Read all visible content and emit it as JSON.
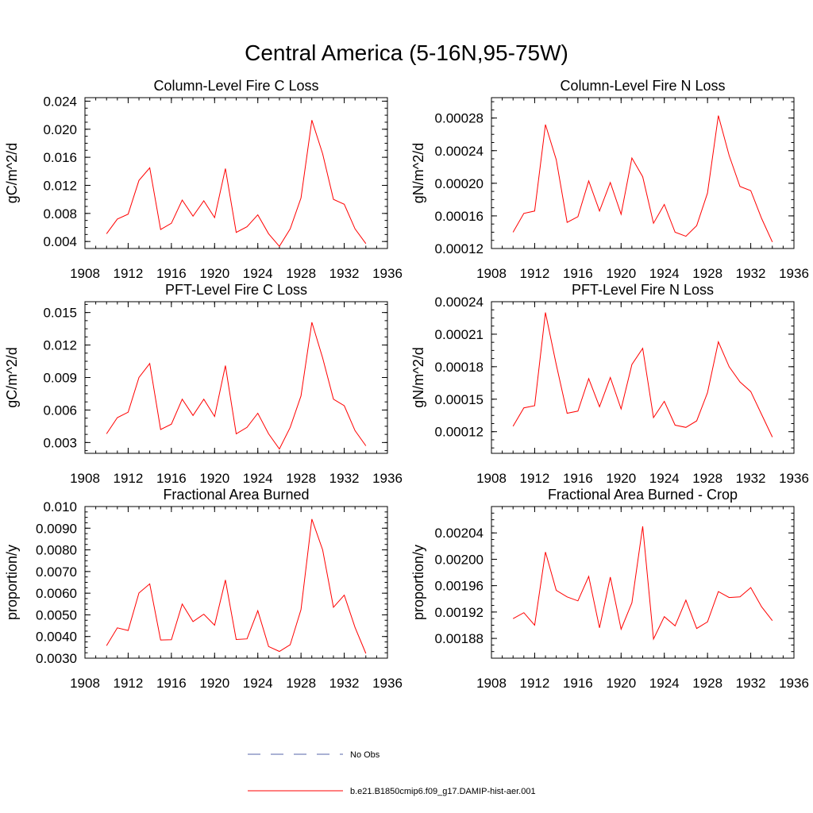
{
  "figure": {
    "title": "Central America (5-16N,95-75W)"
  },
  "colors": {
    "series": "#ff0000",
    "obs": "#5566aa",
    "axis": "#000000"
  },
  "legend": {
    "entries": [
      {
        "label": "No Obs",
        "style": "dashed",
        "color": "#5566aa"
      },
      {
        "label": "b.e21.B1850cmip6.f09_g17.DAMIP-hist-aer.001",
        "style": "solid",
        "color": "#ff0000"
      }
    ]
  },
  "chart_data": [
    {
      "type": "line",
      "title": "Column-Level Fire C Loss",
      "ylabel": "gC/m^2/d",
      "xlim": [
        1908,
        1936
      ],
      "xticks": [
        "1908",
        "1912",
        "1916",
        "1920",
        "1924",
        "1928",
        "1932",
        "1936"
      ],
      "ylim": [
        0.003,
        0.0245
      ],
      "yticks": [
        0.004,
        0.008,
        0.012,
        0.016,
        0.02,
        0.024
      ],
      "ytick_labels": [
        "0.004",
        "0.008",
        "0.012",
        "0.016",
        "0.020",
        "0.024"
      ],
      "x": [
        1910,
        1911,
        1912,
        1913,
        1914,
        1915,
        1916,
        1917,
        1918,
        1919,
        1920,
        1921,
        1922,
        1923,
        1924,
        1925,
        1926,
        1927,
        1928,
        1929,
        1930,
        1931,
        1932,
        1933,
        1934
      ],
      "series": [
        {
          "name": "b.e21.B1850cmip6.f09_g17.DAMIP-hist-aer.001",
          "values": [
            0.0051,
            0.0072,
            0.0079,
            0.0127,
            0.0145,
            0.0057,
            0.0066,
            0.0099,
            0.0076,
            0.0098,
            0.0074,
            0.0144,
            0.0053,
            0.0061,
            0.0078,
            0.0051,
            0.0033,
            0.0058,
            0.0102,
            0.0213,
            0.0165,
            0.01,
            0.0093,
            0.0058,
            0.0037
          ]
        }
      ]
    },
    {
      "type": "line",
      "title": "Column-Level Fire N Loss",
      "ylabel": "gN/m^2/d",
      "xlim": [
        1908,
        1936
      ],
      "xticks": [
        "1908",
        "1912",
        "1916",
        "1920",
        "1924",
        "1928",
        "1932",
        "1936"
      ],
      "ylim": [
        0.00012,
        0.000305
      ],
      "yticks": [
        0.00012,
        0.00016,
        0.0002,
        0.00024,
        0.00028
      ],
      "ytick_labels": [
        "0.00012",
        "0.00016",
        "0.00020",
        "0.00024",
        "0.00028"
      ],
      "x": [
        1910,
        1911,
        1912,
        1913,
        1914,
        1915,
        1916,
        1917,
        1918,
        1919,
        1920,
        1921,
        1922,
        1923,
        1924,
        1925,
        1926,
        1927,
        1928,
        1929,
        1930,
        1931,
        1932,
        1933,
        1934
      ],
      "series": [
        {
          "name": "b.e21.B1850cmip6.f09_g17.DAMIP-hist-aer.001",
          "values": [
            0.00014,
            0.000163,
            0.000166,
            0.000272,
            0.000229,
            0.000152,
            0.000159,
            0.000203,
            0.000166,
            0.000201,
            0.000162,
            0.000231,
            0.000208,
            0.000151,
            0.000174,
            0.00014,
            0.000135,
            0.000148,
            0.000188,
            0.000283,
            0.000234,
            0.000196,
            0.000191,
            0.000157,
            0.000128
          ]
        }
      ]
    },
    {
      "type": "line",
      "title": "PFT-Level Fire C Loss",
      "ylabel": "gC/m^2/d",
      "xlim": [
        1908,
        1936
      ],
      "xticks": [
        "1908",
        "1912",
        "1916",
        "1920",
        "1924",
        "1928",
        "1932",
        "1936"
      ],
      "ylim": [
        0.002,
        0.016
      ],
      "yticks": [
        0.003,
        0.006,
        0.009,
        0.012,
        0.015
      ],
      "ytick_labels": [
        "0.003",
        "0.006",
        "0.009",
        "0.012",
        "0.015"
      ],
      "x": [
        1910,
        1911,
        1912,
        1913,
        1914,
        1915,
        1916,
        1917,
        1918,
        1919,
        1920,
        1921,
        1922,
        1923,
        1924,
        1925,
        1926,
        1927,
        1928,
        1929,
        1930,
        1931,
        1932,
        1933,
        1934
      ],
      "series": [
        {
          "name": "b.e21.B1850cmip6.f09_g17.DAMIP-hist-aer.001",
          "values": [
            0.0038,
            0.0053,
            0.0058,
            0.009,
            0.0103,
            0.0042,
            0.0047,
            0.007,
            0.0055,
            0.007,
            0.0054,
            0.0101,
            0.0038,
            0.0044,
            0.0057,
            0.0038,
            0.0024,
            0.0044,
            0.0073,
            0.0141,
            0.0108,
            0.007,
            0.0064,
            0.0041,
            0.0027
          ]
        }
      ]
    },
    {
      "type": "line",
      "title": "PFT-Level Fire N Loss",
      "ylabel": "gN/m^2/d",
      "xlim": [
        1908,
        1936
      ],
      "xticks": [
        "1908",
        "1912",
        "1916",
        "1920",
        "1924",
        "1928",
        "1932",
        "1936"
      ],
      "ylim": [
        0.0001,
        0.00024
      ],
      "yticks": [
        0.00012,
        0.00015,
        0.00018,
        0.00021,
        0.00024
      ],
      "ytick_labels": [
        "0.00012",
        "0.00015",
        "0.00018",
        "0.00021",
        "0.00024"
      ],
      "x": [
        1910,
        1911,
        1912,
        1913,
        1914,
        1915,
        1916,
        1917,
        1918,
        1919,
        1920,
        1921,
        1922,
        1923,
        1924,
        1925,
        1926,
        1927,
        1928,
        1929,
        1930,
        1931,
        1932,
        1933,
        1934
      ],
      "series": [
        {
          "name": "b.e21.B1850cmip6.f09_g17.DAMIP-hist-aer.001",
          "values": [
            0.000125,
            0.000142,
            0.000144,
            0.00023,
            0.000182,
            0.000137,
            0.000139,
            0.000169,
            0.000143,
            0.00017,
            0.000141,
            0.000182,
            0.000197,
            0.000133,
            0.000148,
            0.000126,
            0.000124,
            0.00013,
            0.000156,
            0.000203,
            0.00018,
            0.000166,
            0.000157,
            0.000136,
            0.000115
          ]
        }
      ]
    },
    {
      "type": "line",
      "title": "Fractional Area Burned",
      "ylabel": "proportion/y",
      "xlim": [
        1908,
        1936
      ],
      "xticks": [
        "1908",
        "1912",
        "1916",
        "1920",
        "1924",
        "1928",
        "1932",
        "1936"
      ],
      "ylim": [
        0.003,
        0.01
      ],
      "yticks": [
        0.003,
        0.004,
        0.005,
        0.006,
        0.007,
        0.008,
        0.009,
        0.01
      ],
      "ytick_labels": [
        "0.0030",
        "0.0040",
        "0.0050",
        "0.0060",
        "0.0070",
        "0.0080",
        "0.0090",
        "0.010"
      ],
      "x": [
        1910,
        1911,
        1912,
        1913,
        1914,
        1915,
        1916,
        1917,
        1918,
        1919,
        1920,
        1921,
        1922,
        1923,
        1924,
        1925,
        1926,
        1927,
        1928,
        1929,
        1930,
        1931,
        1932,
        1933,
        1934
      ],
      "series": [
        {
          "name": "b.e21.B1850cmip6.f09_g17.DAMIP-hist-aer.001",
          "values": [
            0.00358,
            0.0044,
            0.00428,
            0.00601,
            0.00643,
            0.00384,
            0.00385,
            0.0055,
            0.00469,
            0.00503,
            0.00452,
            0.00661,
            0.00386,
            0.00389,
            0.00519,
            0.00354,
            0.00331,
            0.00362,
            0.00524,
            0.00942,
            0.008,
            0.00535,
            0.00591,
            0.00442,
            0.00322
          ]
        }
      ]
    },
    {
      "type": "line",
      "title": "Fractional Area Burned - Crop",
      "ylabel": "proportion/y",
      "xlim": [
        1908,
        1936
      ],
      "xticks": [
        "1908",
        "1912",
        "1916",
        "1920",
        "1924",
        "1928",
        "1932",
        "1936"
      ],
      "ylim": [
        0.00185,
        0.00208
      ],
      "yticks": [
        0.00188,
        0.00192,
        0.00196,
        0.002,
        0.00204
      ],
      "ytick_labels": [
        "0.00188",
        "0.00192",
        "0.00196",
        "0.00200",
        "0.00204"
      ],
      "x": [
        1910,
        1911,
        1912,
        1913,
        1914,
        1915,
        1916,
        1917,
        1918,
        1919,
        1920,
        1921,
        1922,
        1923,
        1924,
        1925,
        1926,
        1927,
        1928,
        1929,
        1930,
        1931,
        1932,
        1933,
        1934
      ],
      "series": [
        {
          "name": "b.e21.B1850cmip6.f09_g17.DAMIP-hist-aer.001",
          "values": [
            0.00191,
            0.001919,
            0.0019,
            0.002011,
            0.001953,
            0.001943,
            0.001937,
            0.001974,
            0.001896,
            0.001973,
            0.001894,
            0.001934,
            0.00205,
            0.001879,
            0.001913,
            0.001899,
            0.001938,
            0.001895,
            0.001905,
            0.001951,
            0.001942,
            0.001943,
            0.001957,
            0.001928,
            0.001907
          ]
        }
      ]
    }
  ]
}
